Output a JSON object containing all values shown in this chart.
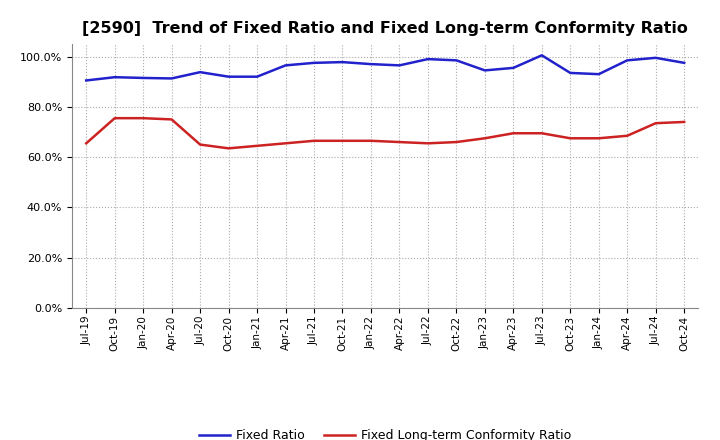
{
  "title": "[2590]  Trend of Fixed Ratio and Fixed Long-term Conformity Ratio",
  "title_fontsize": 11.5,
  "x_labels": [
    "Jul-19",
    "Oct-19",
    "Jan-20",
    "Apr-20",
    "Jul-20",
    "Oct-20",
    "Jan-21",
    "Apr-21",
    "Jul-21",
    "Oct-21",
    "Jan-22",
    "Apr-22",
    "Jul-22",
    "Oct-22",
    "Jan-23",
    "Apr-23",
    "Jul-23",
    "Oct-23",
    "Jan-24",
    "Apr-24",
    "Jul-24",
    "Oct-24"
  ],
  "fixed_ratio": [
    90.5,
    91.8,
    91.5,
    91.3,
    93.8,
    92.0,
    92.0,
    96.5,
    97.5,
    97.8,
    97.0,
    96.5,
    99.0,
    98.5,
    94.5,
    95.5,
    100.5,
    93.5,
    93.0,
    98.5,
    99.5,
    97.5
  ],
  "fixed_lt_ratio": [
    65.5,
    75.5,
    75.5,
    75.0,
    65.0,
    63.5,
    64.5,
    65.5,
    66.5,
    66.5,
    66.5,
    66.0,
    65.5,
    66.0,
    67.5,
    69.5,
    69.5,
    67.5,
    67.5,
    68.5,
    73.5,
    74.0
  ],
  "fixed_ratio_color": "#2222cc",
  "fixed_lt_ratio_color": "#cc2222",
  "ylim": [
    0,
    105
  ],
  "yticks": [
    0,
    20,
    40,
    60,
    80,
    100
  ],
  "background_color": "#ffffff",
  "plot_bg_color": "#ffffff",
  "grid_color": "#aaaaaa",
  "legend_fixed": "Fixed Ratio",
  "legend_lt": "Fixed Long-term Conformity Ratio"
}
